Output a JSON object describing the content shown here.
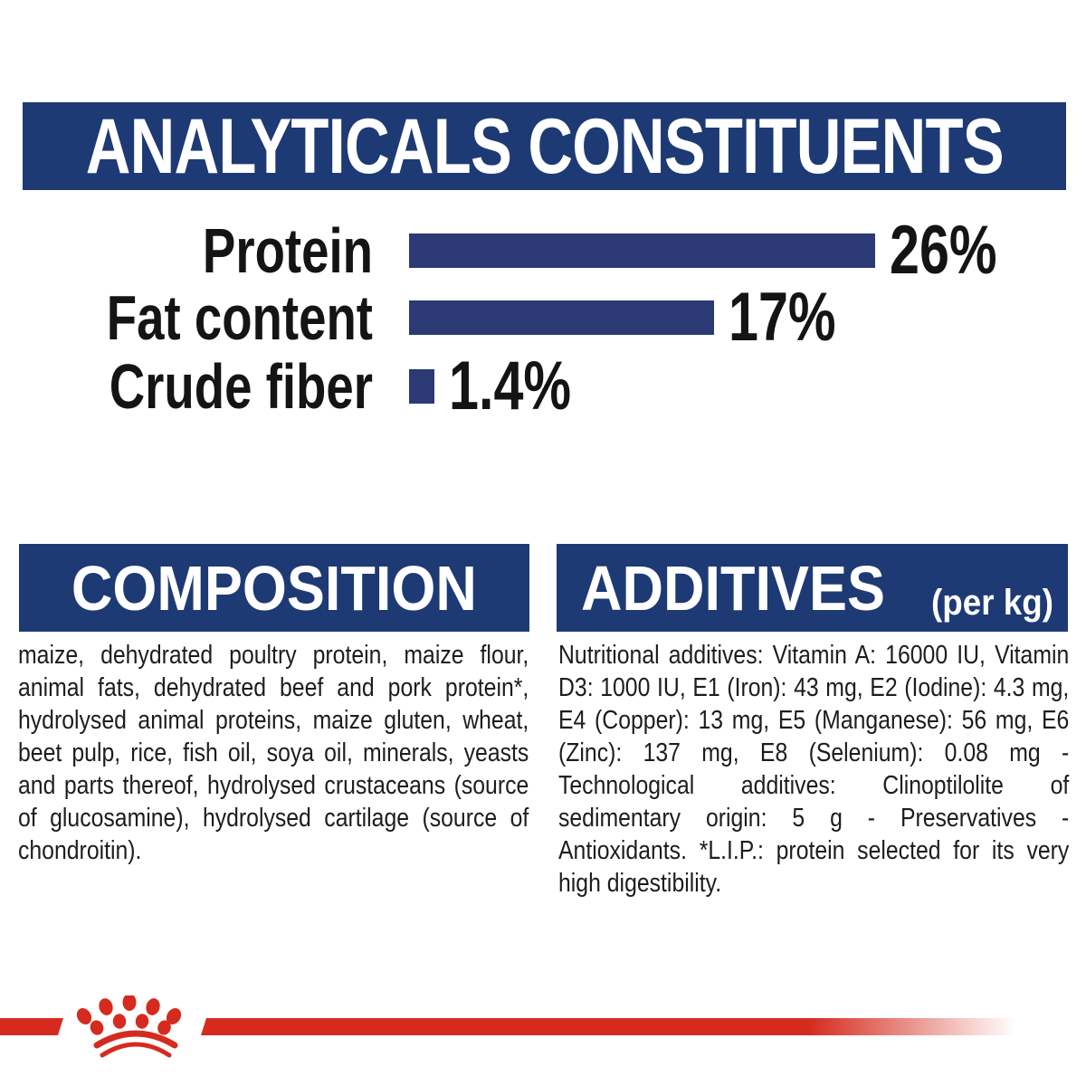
{
  "page": {
    "background": "#ffffff"
  },
  "colors": {
    "navy_box": "#1E3A74",
    "navy_bar": "#2B3A74",
    "red": "#D52B1E",
    "body_text": "#1D1D1B",
    "label_text": "#141414",
    "header_text": "#ffffff"
  },
  "header": {
    "title": "ANALYTICALS CONSTITUENTS"
  },
  "chart_data": {
    "type": "bar",
    "orientation": "horizontal",
    "title": "ANALYTICALS CONSTITUENTS",
    "categories": [
      "Protein",
      "Fat content",
      "Crude fiber"
    ],
    "values": [
      26,
      17,
      1.4
    ],
    "value_labels": [
      "26%",
      "17%",
      "1.4%"
    ],
    "unit": "%",
    "xlim": [
      0,
      26
    ],
    "bar_color": "#2B3A74",
    "grid": false,
    "legend": false
  },
  "sections": {
    "composition": {
      "title": "COMPOSITION",
      "body": "maize, dehydrated poultry protein, maize flour, animal fats, dehydrated beef and pork protein*, hydrolysed animal proteins, maize gluten, wheat, beet pulp, rice, fish oil, soya oil, minerals, yeasts and parts thereof, hydrolysed crustaceans (source of glucosamine), hydrolysed cartilage (source of chondroitin)."
    },
    "additives": {
      "title": "ADDITIVES",
      "title_suffix": "(per kg)",
      "body": "Nutritional additives: Vitamin A: 16000 IU, Vitamin D3: 1000 IU, E1 (Iron): 43 mg, E2 (Iodine): 4.3 mg, E4 (Copper): 13 mg, E5 (Manganese): 56 mg, E6 (Zinc): 137 mg, E8 (Selenium): 0.08 mg - Technological additives: Clinoptilolite of sedimentary origin: 5 g - Preservatives - Antioxidants. *L.I.P.: protein selected for its very high digestibility."
    }
  },
  "footer": {
    "logo": "royal-canin-crown",
    "logo_color": "#D52B1E"
  }
}
